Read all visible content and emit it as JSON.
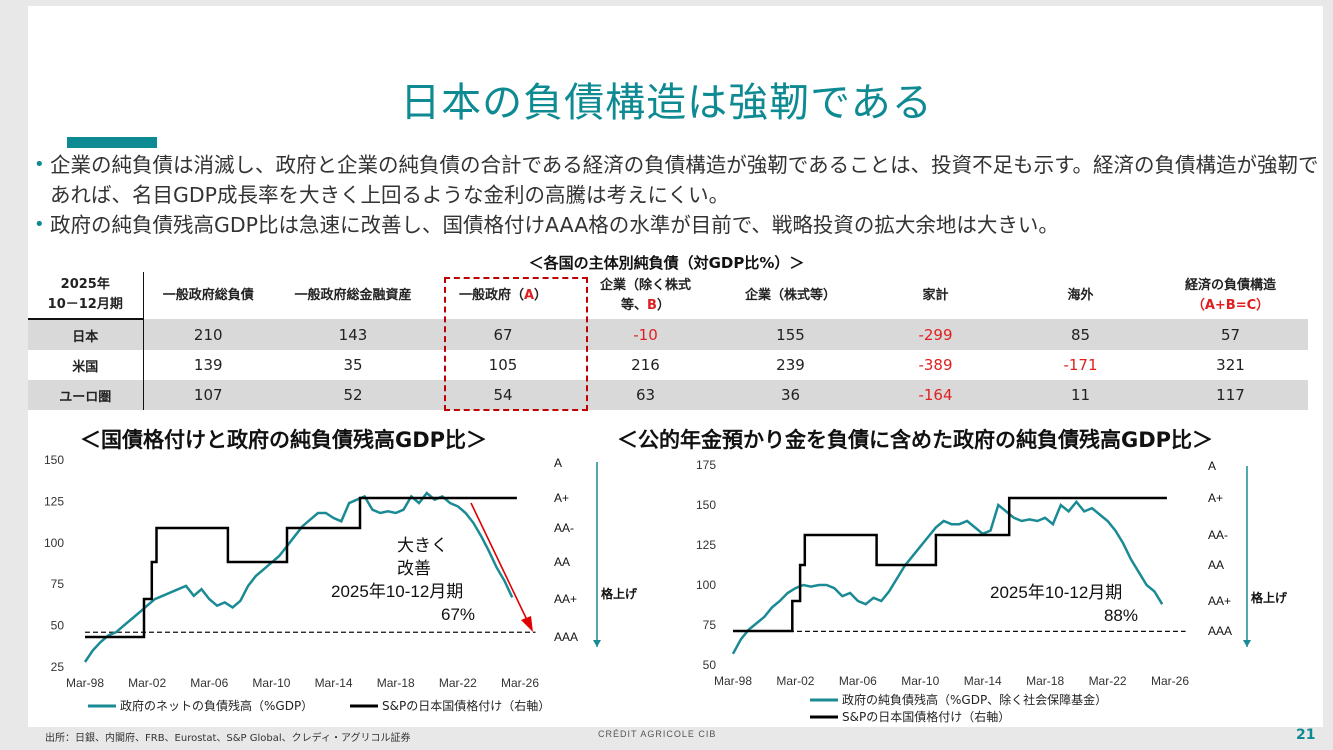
{
  "title": "日本の負債構造は強靭である",
  "bullets": [
    "企業の純負債は消滅し、政府と企業の純負債の合計である経済の負債構造が強靭であることは、投資不足も示す。経済の負債構造が強靭であれば、名目GDP成長率を大きく上回るような金利の高騰は考えにくい。",
    "政府の純負債残高GDP比は急速に改善し、国債格付けAAA格の水準が目前で、戦略投資の拡大余地は大きい。"
  ],
  "table": {
    "caption": "＜各国の主体別純負債（対GDP比%）＞",
    "period_line1": "2025年",
    "period_line2": "10－12月期",
    "headers": [
      "一般政府総負債",
      "一般政府総金融資産",
      "一般政府（",
      "企業（除く株式",
      "企業（株式等）",
      "家計",
      "海外",
      "経済の負債構造"
    ],
    "header_a_mark": "A",
    "header_a_close": "）",
    "header_b_line2": "等、",
    "header_b_mark": "B",
    "header_b_close": "）",
    "header_c_line2": "（A+B=C）",
    "rows": [
      {
        "name": "日本",
        "values": [
          "210",
          "143",
          "67",
          "-10",
          "155",
          "-299",
          "85",
          "57"
        ]
      },
      {
        "name": "米国",
        "values": [
          "139",
          "35",
          "105",
          "216",
          "239",
          "-389",
          "-171",
          "321"
        ]
      },
      {
        "name": "ユーロ圏",
        "values": [
          "107",
          "52",
          "54",
          "63",
          "36",
          "-164",
          "11",
          "117"
        ]
      }
    ]
  },
  "colors": {
    "accent": "#0e8a92",
    "negative": "#e02020",
    "series_debt": "#1a8a94",
    "series_rating": "#000000",
    "arrow": "#e00000"
  },
  "chart_data": [
    {
      "type": "line",
      "title": "＜国債格付けと政府の純負債残高GDP比＞",
      "x_ticks": [
        "Mar-98",
        "Mar-02",
        "Mar-06",
        "Mar-10",
        "Mar-14",
        "Mar-18",
        "Mar-22",
        "Mar-26"
      ],
      "y_ticks": [
        "25",
        "50",
        "75",
        "100",
        "125",
        "150"
      ],
      "ylim": [
        25,
        150
      ],
      "rating_ticks": [
        "A",
        "A+",
        "AA-",
        "AA",
        "AA+",
        "AAA"
      ],
      "rating_axis_label": "格上げ",
      "annotation_lines": [
        "大きく",
        "改善",
        "2025年10-12月期",
        "67%"
      ],
      "series": [
        {
          "name": "政府のネットの負債残高（%GDP）",
          "x": [
            1998.0,
            1998.5,
            1999.0,
            1999.5,
            2000.0,
            2000.5,
            2001.0,
            2001.5,
            2002.0,
            2002.5,
            2003.0,
            2003.5,
            2004.0,
            2004.5,
            2005.0,
            2005.5,
            2006.0,
            2006.5,
            2007.0,
            2007.5,
            2008.0,
            2008.5,
            2009.0,
            2009.5,
            2010.0,
            2010.5,
            2011.0,
            2011.5,
            2012.0,
            2012.5,
            2013.0,
            2013.5,
            2014.0,
            2014.5,
            2015.0,
            2015.5,
            2016.0,
            2016.5,
            2017.0,
            2017.5,
            2018.0,
            2018.5,
            2019.0,
            2019.5,
            2020.0,
            2020.5,
            2021.0,
            2021.5,
            2022.0,
            2022.5,
            2023.0,
            2023.5,
            2024.0,
            2024.5,
            2025.0,
            2025.5
          ],
          "values": [
            28,
            35,
            40,
            44,
            46,
            50,
            54,
            58,
            62,
            66,
            68,
            70,
            72,
            74,
            68,
            72,
            66,
            62,
            64,
            61,
            65,
            74,
            80,
            84,
            88,
            92,
            98,
            104,
            110,
            114,
            118,
            118,
            115,
            113,
            124,
            126,
            128,
            120,
            118,
            119,
            118,
            120,
            128,
            124,
            130,
            126,
            128,
            124,
            122,
            118,
            112,
            104,
            95,
            85,
            77,
            67
          ]
        },
        {
          "name": "S&Pの日本国債格付け（右軸）",
          "x": [
            1998.0,
            2001.8,
            2001.8,
            2002.3,
            2002.3,
            2002.6,
            2002.6,
            2003.0,
            2003.0,
            2007.2,
            2007.2,
            2011.0,
            2011.0,
            2015.7,
            2015.7,
            2025.8
          ],
          "rating": [
            "AAA",
            "AAA",
            "AA+",
            "AA+",
            "AA",
            "AA",
            "AA-",
            "AA-",
            "AA-",
            "AA-",
            "AA",
            "AA",
            "AA-",
            "AA-",
            "A+",
            "A+"
          ]
        },
        {
          "name": "AAA",
          "x": [
            1998.0,
            2027.0
          ],
          "values": [
            46,
            46
          ]
        }
      ]
    },
    {
      "type": "line",
      "title": "＜公的年金預かり金を負債に含めた政府の純負債残高GDP比＞",
      "x_ticks": [
        "Mar-98",
        "Mar-02",
        "Mar-06",
        "Mar-10",
        "Mar-14",
        "Mar-18",
        "Mar-22",
        "Mar-26"
      ],
      "y_ticks": [
        "50",
        "75",
        "100",
        "125",
        "150",
        "175"
      ],
      "ylim": [
        50,
        175
      ],
      "rating_ticks": [
        "A",
        "A+",
        "AA-",
        "AA",
        "AA+",
        "AAA"
      ],
      "rating_axis_label": "格上げ",
      "annotation_lines": [
        "2025年10-12月期",
        "88%"
      ],
      "series": [
        {
          "name": "政府の純負債残高（%GDP、除く社会保障基金）",
          "x": [
            1998.0,
            1998.5,
            1999.0,
            1999.5,
            2000.0,
            2000.5,
            2001.0,
            2001.5,
            2002.0,
            2002.5,
            2003.0,
            2003.5,
            2004.0,
            2004.5,
            2005.0,
            2005.5,
            2006.0,
            2006.5,
            2007.0,
            2007.5,
            2008.0,
            2008.5,
            2009.0,
            2009.5,
            2010.0,
            2010.5,
            2011.0,
            2011.5,
            2012.0,
            2012.5,
            2013.0,
            2013.5,
            2014.0,
            2014.5,
            2015.0,
            2015.5,
            2016.0,
            2016.5,
            2017.0,
            2017.5,
            2018.0,
            2018.5,
            2019.0,
            2019.5,
            2020.0,
            2020.5,
            2021.0,
            2021.5,
            2022.0,
            2022.5,
            2023.0,
            2023.5,
            2024.0,
            2024.5,
            2025.0,
            2025.5
          ],
          "values": [
            57,
            66,
            72,
            76,
            80,
            86,
            90,
            95,
            98,
            100,
            99,
            100,
            100,
            98,
            93,
            95,
            90,
            88,
            92,
            90,
            96,
            104,
            112,
            118,
            124,
            130,
            136,
            140,
            138,
            138,
            140,
            136,
            132,
            134,
            150,
            146,
            142,
            140,
            141,
            140,
            142,
            138,
            150,
            146,
            152,
            146,
            148,
            144,
            140,
            134,
            126,
            116,
            108,
            100,
            96,
            88
          ]
        },
        {
          "name": "S&Pの日本国債格付け（右軸）",
          "x": [
            1998.0,
            2001.8,
            2001.8,
            2002.3,
            2002.3,
            2002.6,
            2002.6,
            2003.0,
            2003.0,
            2007.2,
            2007.2,
            2011.0,
            2011.0,
            2015.7,
            2015.7,
            2025.8
          ],
          "rating": [
            "AAA",
            "AAA",
            "AA+",
            "AA+",
            "AA",
            "AA",
            "AA-",
            "AA-",
            "AA-",
            "AA-",
            "AA",
            "AA",
            "AA-",
            "AA-",
            "A+",
            "A+"
          ]
        },
        {
          "name": "AAA",
          "x": [
            1998.0,
            2027.0
          ],
          "values": [
            71,
            71
          ]
        }
      ]
    }
  ],
  "footer": {
    "source": "出所：日銀、内閣府、FRB、Eurostat、S&P Global、クレディ・アグリコル証券",
    "logo": "CRÉDIT AGRICOLE CIB",
    "page": "21"
  }
}
